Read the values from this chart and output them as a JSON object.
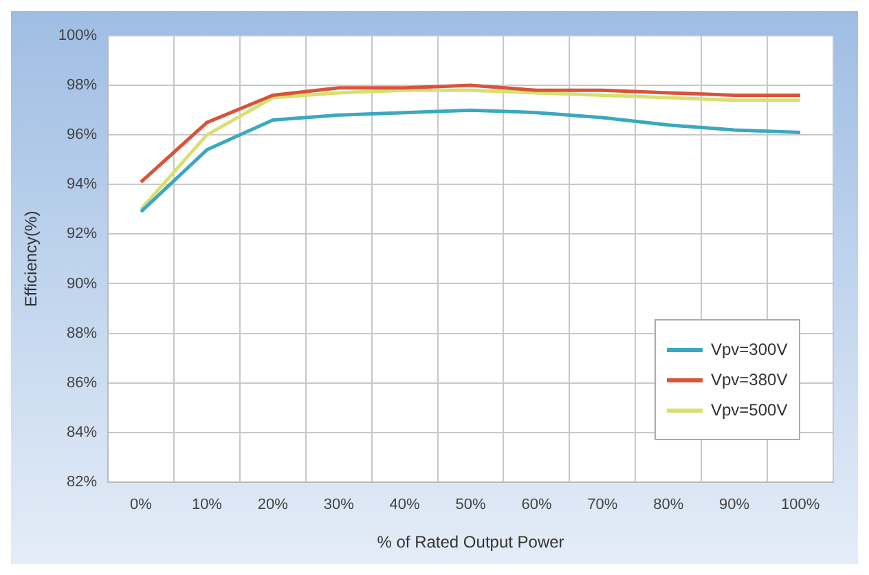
{
  "chart_data": {
    "type": "line",
    "xlabel": "% of Rated Output Power",
    "ylabel": "Efficiency(%)",
    "categories": [
      "0%",
      "10%",
      "20%",
      "30%",
      "40%",
      "50%",
      "60%",
      "70%",
      "80%",
      "90%",
      "100%"
    ],
    "series": [
      {
        "name": "Vpv=300V",
        "color": "#3aa8c0",
        "values": [
          92.9,
          95.4,
          96.6,
          96.8,
          96.9,
          97.0,
          96.9,
          96.7,
          96.4,
          96.2,
          96.1
        ]
      },
      {
        "name": "Vpv=380V",
        "color": "#d9533a",
        "values": [
          94.1,
          96.5,
          97.6,
          97.9,
          97.9,
          98.0,
          97.8,
          97.8,
          97.7,
          97.6,
          97.6
        ]
      },
      {
        "name": "Vpv=500V",
        "color": "#d8e070",
        "values": [
          93.0,
          96.0,
          97.5,
          97.7,
          97.8,
          97.8,
          97.7,
          97.6,
          97.5,
          97.4,
          97.4
        ]
      }
    ],
    "ylim": [
      82,
      100
    ],
    "yticks": [
      {
        "value": 82,
        "label": "82%"
      },
      {
        "value": 84,
        "label": "84%"
      },
      {
        "value": 86,
        "label": "86%"
      },
      {
        "value": 88,
        "label": "88%"
      },
      {
        "value": 90,
        "label": "90%"
      },
      {
        "value": 92,
        "label": "92%"
      },
      {
        "value": 94,
        "label": "94%"
      },
      {
        "value": 96,
        "label": "96%"
      },
      {
        "value": 98,
        "label": "98%"
      },
      {
        "value": 100,
        "label": "100%"
      }
    ],
    "grid": true,
    "legend": "bottom right",
    "marker": "none",
    "line_style": "solid"
  }
}
